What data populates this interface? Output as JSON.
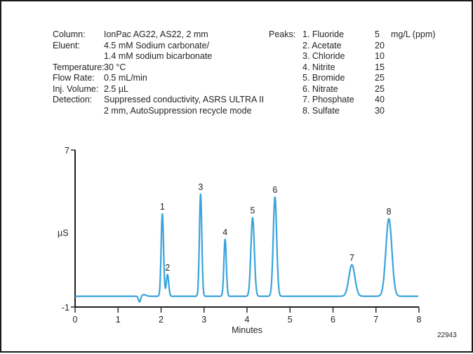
{
  "conditions": [
    {
      "label": "Column:",
      "value": "IonPac AG22, AS22, 2 mm"
    },
    {
      "label": "Eluent:",
      "value": "4.5 mM Sodium carbonate/"
    },
    {
      "label": "",
      "value": "1.4 mM sodium bicarbonate"
    },
    {
      "label": "Temperature:",
      "value": "30 °C"
    },
    {
      "label": "Flow Rate:",
      "value": "0.5 mL/min"
    },
    {
      "label": "Inj. Volume:",
      "value": "2.5 µL"
    },
    {
      "label": "Detection:",
      "value": "Suppressed conductivity, ASRS ULTRA II"
    },
    {
      "label": "",
      "value": "2 mm, AutoSuppression recycle mode"
    }
  ],
  "peaks_label": "Peaks:",
  "peak_table": [
    {
      "name": "1. Fluoride",
      "conc": "5",
      "unit": "mg/L (ppm)"
    },
    {
      "name": "2. Acetate",
      "conc": "20"
    },
    {
      "name": "3. Chloride",
      "conc": "10"
    },
    {
      "name": "4. Nitrite",
      "conc": "15"
    },
    {
      "name": "5. Bromide",
      "conc": "25"
    },
    {
      "name": "6. Nitrate",
      "conc": "25"
    },
    {
      "name": "7. Phosphate",
      "conc": "40"
    },
    {
      "name": "8. Sulfate",
      "conc": "30"
    }
  ],
  "figure_number": "22943",
  "chart_data": {
    "type": "line",
    "title": "",
    "xlabel": "Minutes",
    "ylabel": "µS",
    "xlim": [
      0,
      8
    ],
    "ylim": [
      -1,
      7
    ],
    "x_ticks": [
      "0",
      "1",
      "2",
      "3",
      "4",
      "5",
      "6",
      "7",
      "8"
    ],
    "y_tick_labels": [
      "7",
      "-1"
    ],
    "grid": false,
    "line_color": "#3aa3dc",
    "baseline": -0.45,
    "system_dip": {
      "x": 1.5,
      "depth": 0.3
    },
    "peaks": [
      {
        "label": "1",
        "x": 2.03,
        "y": 3.75
      },
      {
        "label": "2",
        "x": 2.15,
        "y": 0.65
      },
      {
        "label": "3",
        "x": 2.92,
        "y": 4.75
      },
      {
        "label": "4",
        "x": 3.49,
        "y": 2.45
      },
      {
        "label": "5",
        "x": 4.13,
        "y": 3.55
      },
      {
        "label": "6",
        "x": 4.65,
        "y": 4.6
      },
      {
        "label": "7",
        "x": 6.44,
        "y": 1.15
      },
      {
        "label": "8",
        "x": 7.3,
        "y": 3.5
      }
    ]
  }
}
